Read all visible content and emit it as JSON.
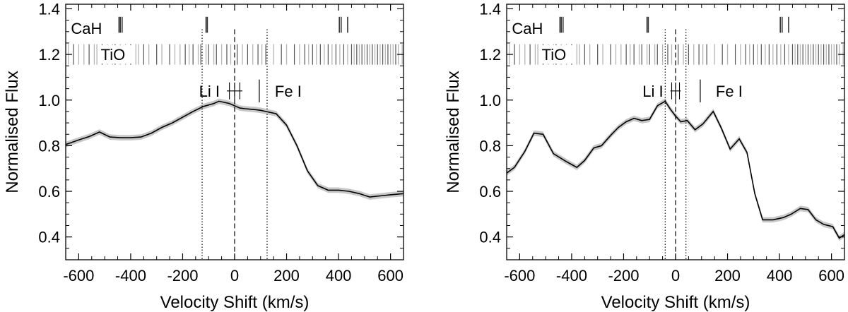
{
  "chart_data": [
    {
      "type": "line",
      "xlabel": "Velocity Shift (km/s)",
      "ylabel": "Normalised Flux",
      "xlim": [
        -650,
        650
      ],
      "ylim": [
        0.3,
        1.42
      ],
      "xticks": [
        -600,
        -400,
        -200,
        0,
        200,
        400,
        600
      ],
      "yticks": [
        0.4,
        0.6,
        0.8,
        1.0,
        1.2,
        1.4
      ],
      "xtick_labels": [
        "-600",
        "-400",
        "-200",
        "0",
        "200",
        "400",
        "600"
      ],
      "ytick_labels": [
        "0.4",
        "0.6",
        "0.8",
        "1.0",
        "1.2",
        "1.4"
      ],
      "grid": false,
      "series": [
        {
          "x": [
            -650,
            -600,
            -560,
            -520,
            -480,
            -440,
            -400,
            -360,
            -320,
            -280,
            -240,
            -200,
            -160,
            -120,
            -80,
            -60,
            -20,
            0,
            20,
            40,
            60,
            80,
            100,
            120,
            160,
            200,
            240,
            280,
            320,
            360,
            400,
            440,
            480,
            520,
            560,
            600,
            650
          ],
          "y": [
            0.805,
            0.825,
            0.84,
            0.86,
            0.838,
            0.835,
            0.835,
            0.838,
            0.855,
            0.88,
            0.9,
            0.925,
            0.95,
            0.972,
            0.985,
            0.995,
            0.985,
            0.975,
            0.965,
            0.962,
            0.96,
            0.958,
            0.955,
            0.95,
            0.94,
            0.89,
            0.8,
            0.69,
            0.625,
            0.605,
            0.605,
            0.6,
            0.59,
            0.575,
            0.58,
            0.585,
            0.59
          ],
          "color": "#000000",
          "band_color": "#c8c8c8"
        }
      ],
      "vlines": [
        {
          "x": -125,
          "style": "dotted"
        },
        {
          "x": 0,
          "style": "dashed"
        },
        {
          "x": 125,
          "style": "dotted"
        }
      ],
      "labels": {
        "cah": "CaH",
        "tio": "TiO",
        "li": "Li I",
        "fe": "Fe I"
      },
      "cah_lines": [
        -445,
        -440,
        -433,
        -110,
        -105,
        403,
        410,
        435
      ],
      "tio_black_lines": [
        -620,
        -560,
        -510,
        -460,
        -400,
        -350,
        -300,
        -250,
        -190,
        -160,
        -130,
        -100,
        -70,
        -30,
        10,
        50,
        90,
        120,
        180,
        230,
        270,
        300,
        330,
        360,
        390,
        420,
        450,
        470,
        490,
        510,
        530,
        550,
        570,
        590,
        620
      ],
      "tio_grey_lines": [
        -640,
        -600,
        -580,
        -540,
        -530,
        -490,
        -470,
        -440,
        -420,
        -380,
        -370,
        -330,
        -280,
        -230,
        -210,
        -175,
        -140,
        -110,
        -80,
        -50,
        -15,
        30,
        70,
        105,
        150,
        200,
        250,
        285,
        315,
        345,
        375,
        405,
        435,
        460,
        480,
        500,
        520,
        540,
        560,
        580,
        600,
        610,
        630,
        645
      ],
      "li_marker": {
        "x": [
          -30,
          30
        ],
        "dashes": [
          -20,
          0,
          20
        ]
      },
      "fe_marker": {
        "x": 95
      }
    },
    {
      "type": "line",
      "xlabel": "Velocity Shift (km/s)",
      "ylabel": "Normalised Flux",
      "xlim": [
        -650,
        650
      ],
      "ylim": [
        0.3,
        1.42
      ],
      "xticks": [
        -600,
        -400,
        -200,
        0,
        200,
        400,
        600
      ],
      "yticks": [
        0.4,
        0.6,
        0.8,
        1.0,
        1.2,
        1.4
      ],
      "xtick_labels": [
        "-600",
        "-400",
        "-200",
        "0",
        "200",
        "400",
        "600"
      ],
      "ytick_labels": [
        "0.4",
        "0.6",
        "0.8",
        "1.0",
        "1.2",
        "1.4"
      ],
      "grid": false,
      "series": [
        {
          "x": [
            -650,
            -620,
            -580,
            -545,
            -510,
            -470,
            -420,
            -380,
            -350,
            -315,
            -285,
            -250,
            -220,
            -190,
            -160,
            -130,
            -100,
            -70,
            -40,
            -20,
            0,
            20,
            45,
            75,
            105,
            145,
            175,
            210,
            245,
            275,
            305,
            335,
            375,
            415,
            445,
            480,
            510,
            540,
            570,
            605,
            630,
            650
          ],
          "y": [
            0.68,
            0.705,
            0.775,
            0.855,
            0.85,
            0.765,
            0.73,
            0.705,
            0.735,
            0.79,
            0.8,
            0.845,
            0.88,
            0.905,
            0.92,
            0.91,
            0.915,
            0.975,
            0.995,
            0.96,
            0.93,
            0.905,
            0.91,
            0.87,
            0.895,
            0.95,
            0.88,
            0.785,
            0.83,
            0.77,
            0.59,
            0.475,
            0.475,
            0.485,
            0.5,
            0.525,
            0.52,
            0.475,
            0.455,
            0.445,
            0.395,
            0.41
          ],
          "color": "#000000",
          "band_color": "#c8c8c8"
        }
      ],
      "vlines": [
        {
          "x": -40,
          "style": "dotted"
        },
        {
          "x": 0,
          "style": "dashed"
        },
        {
          "x": 40,
          "style": "dotted"
        }
      ],
      "labels": {
        "cah": "CaH",
        "tio": "TiO",
        "li": "Li I",
        "fe": "Fe I"
      },
      "cah_lines": [
        -445,
        -440,
        -433,
        -110,
        -105,
        403,
        410,
        435
      ],
      "tio_black_lines": [
        -620,
        -560,
        -510,
        -460,
        -400,
        -350,
        -300,
        -250,
        -190,
        -160,
        -130,
        -100,
        -70,
        -30,
        10,
        50,
        90,
        120,
        180,
        230,
        270,
        300,
        330,
        360,
        390,
        420,
        450,
        470,
        490,
        510,
        530,
        550,
        570,
        590,
        620
      ],
      "tio_grey_lines": [
        -640,
        -600,
        -580,
        -540,
        -530,
        -490,
        -470,
        -440,
        -420,
        -380,
        -370,
        -330,
        -280,
        -230,
        -210,
        -175,
        -140,
        -110,
        -80,
        -50,
        -15,
        30,
        70,
        105,
        150,
        200,
        250,
        285,
        315,
        345,
        375,
        405,
        435,
        460,
        480,
        500,
        520,
        540,
        560,
        580,
        600,
        610,
        630,
        645
      ],
      "li_marker": {
        "x": [
          -20,
          20
        ],
        "dashes": [
          -15,
          0,
          15
        ]
      },
      "fe_marker": {
        "x": 95
      }
    }
  ]
}
